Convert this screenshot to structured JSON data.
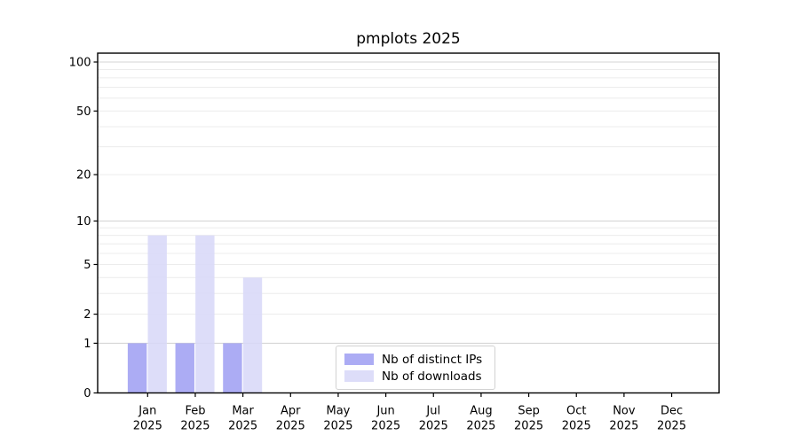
{
  "title": "pmplots 2025",
  "chart_data": {
    "type": "bar",
    "title": "pmplots 2025",
    "categories": [
      "Jan 2025",
      "Feb 2025",
      "Mar 2025",
      "Apr 2025",
      "May 2025",
      "Jun 2025",
      "Jul 2025",
      "Aug 2025",
      "Sep 2025",
      "Oct 2025",
      "Nov 2025",
      "Dec 2025"
    ],
    "x_tick_months": [
      "Jan",
      "Feb",
      "Mar",
      "Apr",
      "May",
      "Jun",
      "Jul",
      "Aug",
      "Sep",
      "Oct",
      "Nov",
      "Dec"
    ],
    "x_tick_year": "2025",
    "series": [
      {
        "name": "Nb of distinct IPs",
        "color": "#a0a0f2",
        "values": [
          1,
          1,
          1,
          0,
          0,
          0,
          0,
          0,
          0,
          0,
          0,
          0
        ]
      },
      {
        "name": "Nb of downloads",
        "color": "#d8d8f8",
        "values": [
          8,
          8,
          4,
          0,
          0,
          0,
          0,
          0,
          0,
          0,
          0,
          0
        ]
      }
    ],
    "y_axis": {
      "scale": "log1p",
      "ticks": [
        0,
        1,
        2,
        5,
        10,
        20,
        50,
        100
      ],
      "major_gridlines": [
        1,
        10,
        100
      ],
      "minor_gridlines": [
        2,
        3,
        4,
        5,
        6,
        7,
        8,
        9,
        20,
        30,
        40,
        50,
        60,
        70,
        80,
        90
      ],
      "range": [
        0,
        113
      ]
    },
    "legend_position": "lower center",
    "grid": true
  },
  "colors": {
    "background": "#ffffff",
    "axis": "#000000",
    "text": "#000000",
    "major_grid": "#d6d6d6",
    "minor_grid": "#ececec",
    "legend_border": "#d2d2d2"
  }
}
